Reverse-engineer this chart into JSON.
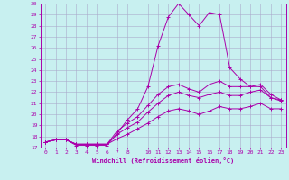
{
  "xlabel": "Windchill (Refroidissement éolien,°C)",
  "bg_color": "#c8f0f0",
  "line_color": "#aa00aa",
  "grid_color": "#aaaacc",
  "xlim": [
    -0.5,
    23.5
  ],
  "ylim": [
    17,
    30
  ],
  "xticks": [
    0,
    1,
    2,
    3,
    4,
    5,
    6,
    7,
    8,
    10,
    11,
    12,
    13,
    14,
    15,
    16,
    17,
    18,
    19,
    20,
    21,
    22,
    23
  ],
  "yticks": [
    17,
    18,
    19,
    20,
    21,
    22,
    23,
    24,
    25,
    26,
    27,
    28,
    29,
    30
  ],
  "series": [
    [
      17.5,
      17.7,
      17.7,
      17.2,
      17.2,
      17.2,
      17.2,
      18.3,
      19.5,
      20.5,
      22.5,
      26.2,
      28.8,
      30.0,
      29.0,
      28.0,
      29.2,
      29.0,
      24.2,
      23.2,
      22.5,
      22.7,
      21.8,
      21.3
    ],
    [
      17.5,
      17.7,
      17.7,
      17.3,
      17.3,
      17.3,
      17.3,
      18.5,
      19.2,
      19.8,
      20.8,
      21.8,
      22.5,
      22.7,
      22.3,
      22.0,
      22.7,
      23.0,
      22.5,
      22.5,
      22.5,
      22.5,
      21.5,
      21.3
    ],
    [
      17.5,
      17.7,
      17.7,
      17.3,
      17.3,
      17.3,
      17.3,
      18.2,
      18.8,
      19.3,
      20.2,
      21.0,
      21.7,
      22.0,
      21.7,
      21.5,
      21.8,
      22.0,
      21.7,
      21.7,
      22.0,
      22.2,
      21.5,
      21.2
    ],
    [
      17.5,
      17.7,
      17.7,
      17.3,
      17.3,
      17.3,
      17.3,
      17.8,
      18.2,
      18.7,
      19.2,
      19.8,
      20.3,
      20.5,
      20.3,
      20.0,
      20.3,
      20.7,
      20.5,
      20.5,
      20.7,
      21.0,
      20.5,
      20.5
    ]
  ]
}
